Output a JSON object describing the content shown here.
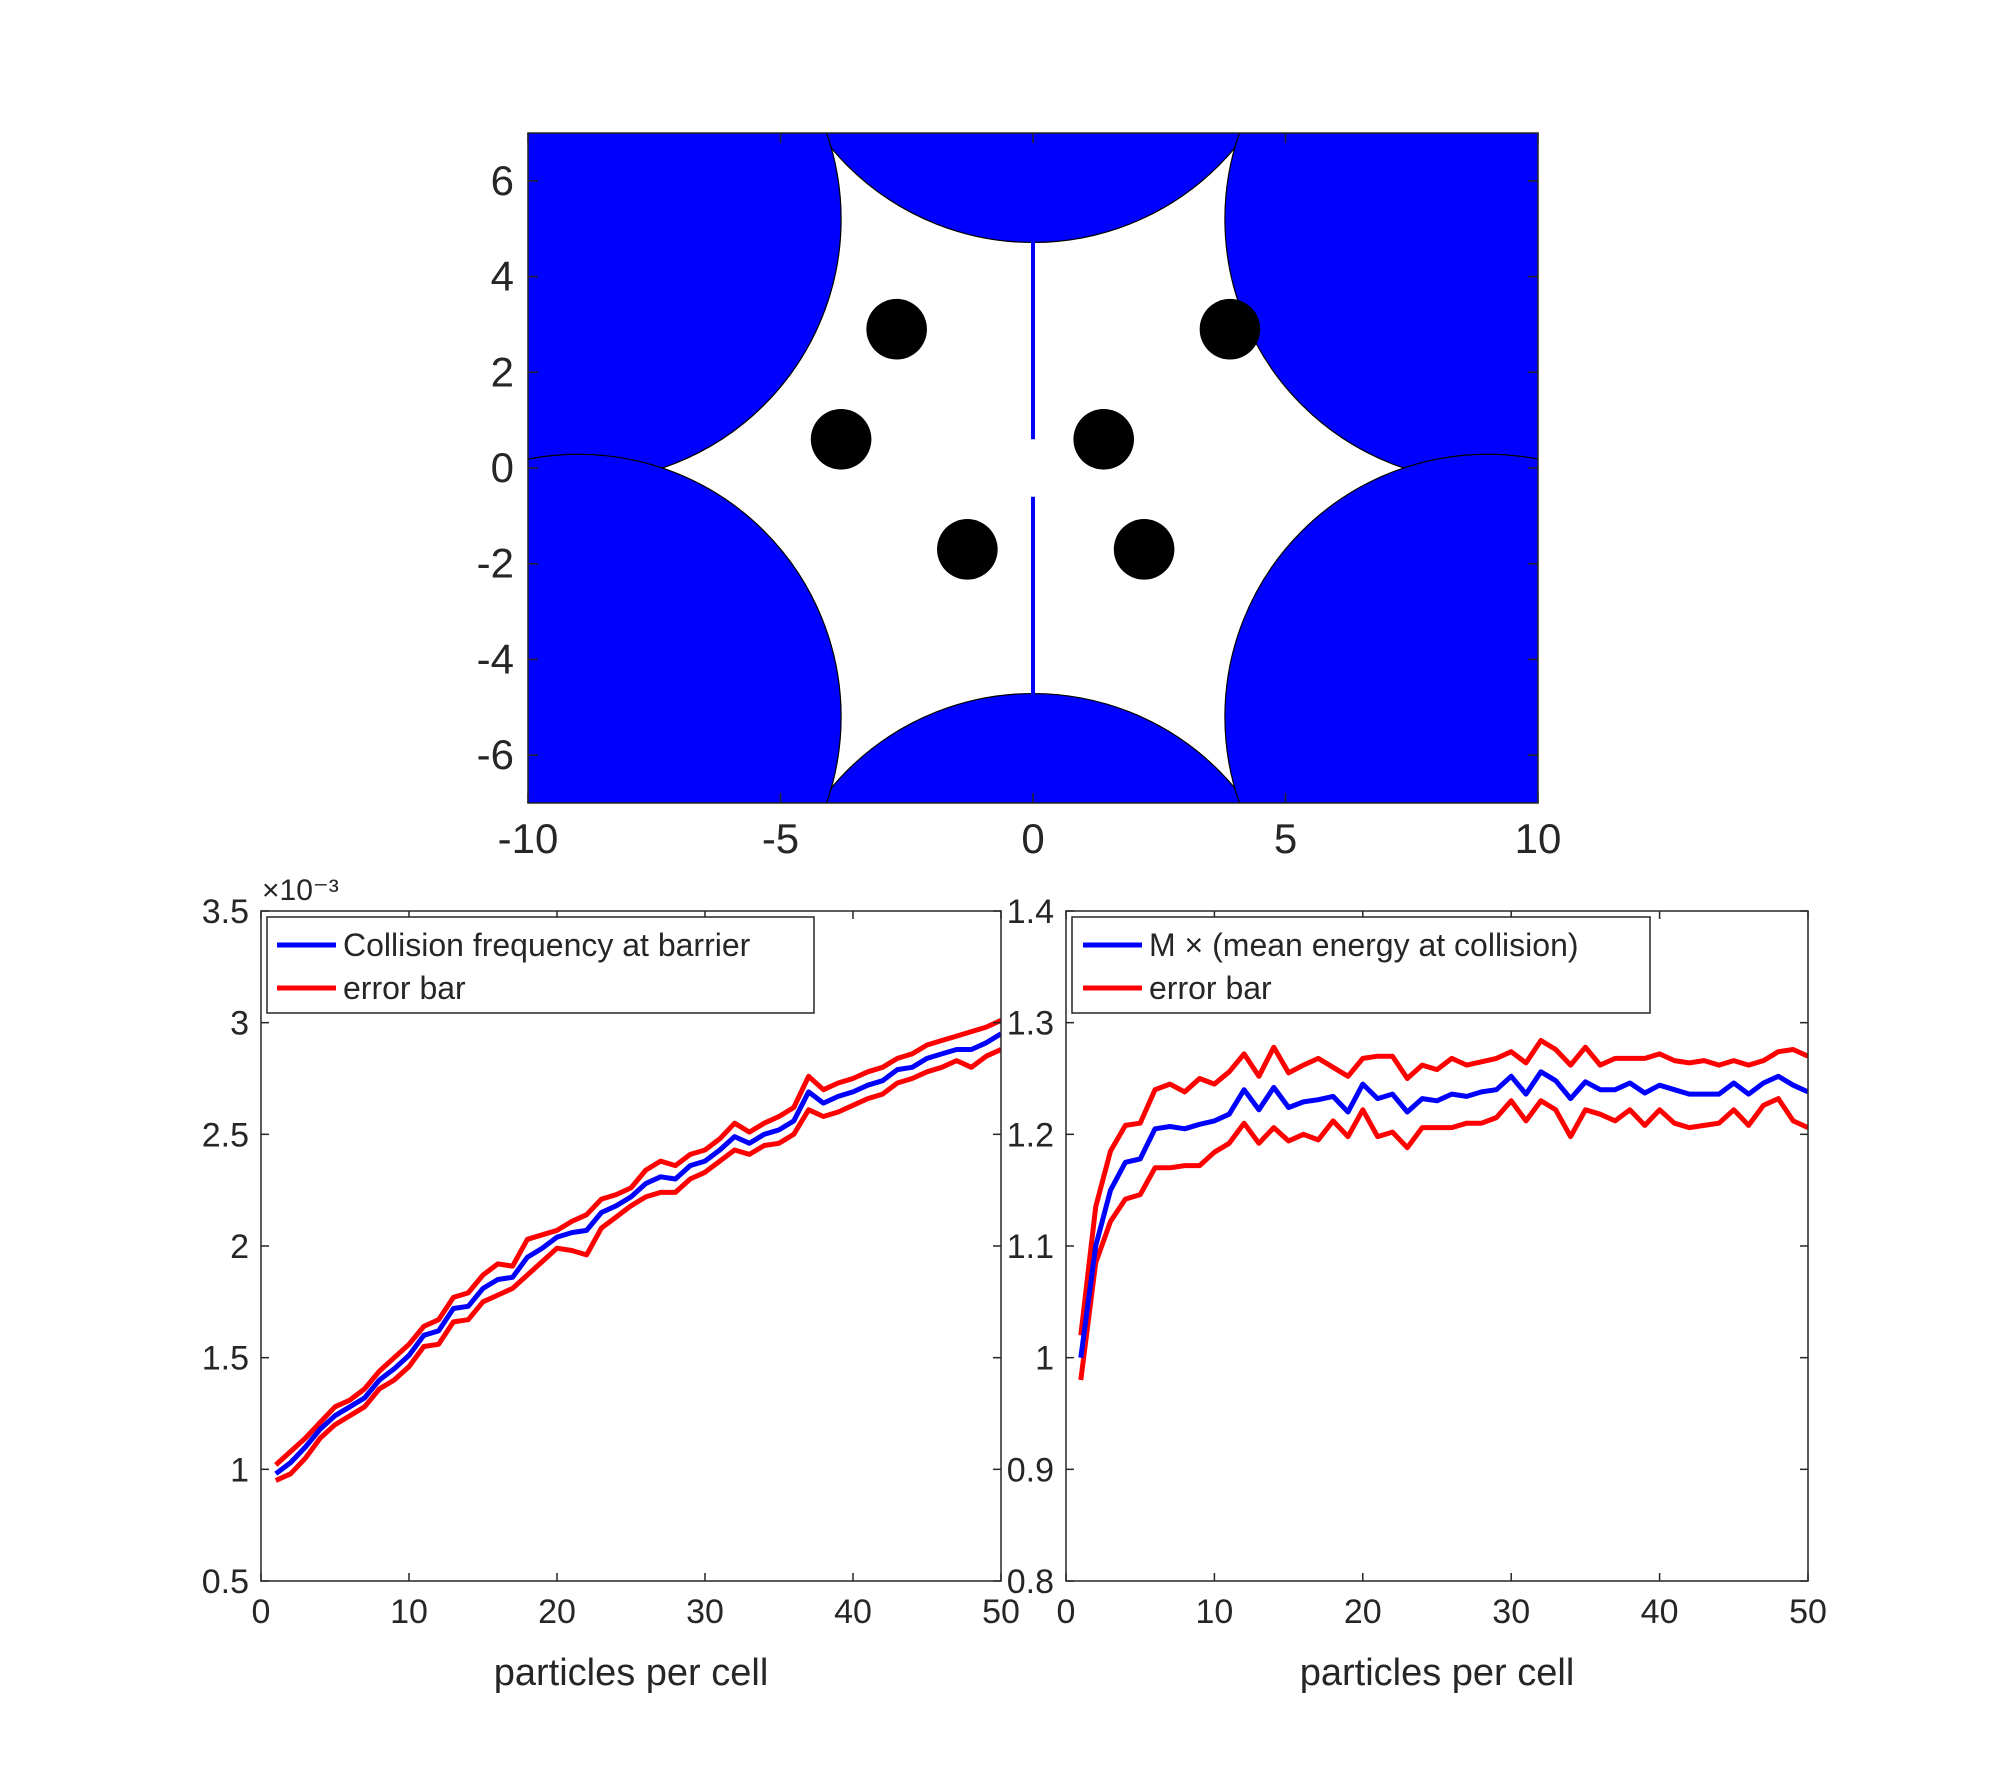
{
  "colors": {
    "blue": "#0000ff",
    "red": "#ff0000",
    "black": "#000000",
    "axis": "#262626",
    "background": "#ffffff"
  },
  "chart_data": [
    {
      "type": "geometry",
      "xlim": [
        -10,
        10
      ],
      "ylim": [
        -7,
        7
      ],
      "xticks": [
        -10,
        -5,
        0,
        5,
        10
      ],
      "yticks": [
        -6,
        -4,
        -2,
        0,
        2,
        4,
        6
      ],
      "grid": false,
      "scatterers": {
        "hexagon_center_distance": 10.39,
        "radius": 5.2,
        "centers": [
          [
            0,
            10.2
          ],
          [
            0,
            -10.2
          ],
          [
            9,
            5.2
          ],
          [
            9,
            -5.2
          ],
          [
            -9,
            5.2
          ],
          [
            -9,
            -5.2
          ]
        ]
      },
      "barrier": {
        "x": 0,
        "segments": [
          [
            0.6,
            5.0
          ],
          [
            -5.0,
            -0.6
          ]
        ]
      },
      "particles": {
        "radius": 0.6,
        "centers": [
          [
            -2.7,
            2.9
          ],
          [
            3.9,
            2.9
          ],
          [
            -3.8,
            0.6
          ],
          [
            1.4,
            0.6
          ],
          [
            -1.3,
            -1.7
          ],
          [
            2.2,
            -1.7
          ]
        ]
      }
    },
    {
      "type": "line",
      "xlabel": "particles per cell",
      "ylabel": "",
      "exponent_label": "×10⁻³",
      "xlim": [
        0,
        50
      ],
      "ylim": [
        0.5,
        3.5
      ],
      "xticks": [
        0,
        10,
        20,
        30,
        40,
        50
      ],
      "yticks": [
        0.5,
        1,
        1.5,
        2,
        2.5,
        3,
        3.5
      ],
      "legend_position": "top-left",
      "grid": false,
      "x": [
        1,
        2,
        3,
        4,
        5,
        6,
        7,
        8,
        9,
        10,
        11,
        12,
        13,
        14,
        15,
        16,
        17,
        18,
        19,
        20,
        21,
        22,
        23,
        24,
        25,
        26,
        27,
        28,
        29,
        30,
        31,
        32,
        33,
        34,
        35,
        36,
        37,
        38,
        39,
        40,
        41,
        42,
        43,
        44,
        45,
        46,
        47,
        48,
        49,
        50
      ],
      "series": [
        {
          "name": "Collision frequency at barrier",
          "color": "#0000ff",
          "values": [
            0.98,
            1.03,
            1.1,
            1.18,
            1.24,
            1.28,
            1.32,
            1.4,
            1.45,
            1.51,
            1.6,
            1.62,
            1.72,
            1.73,
            1.81,
            1.85,
            1.86,
            1.95,
            1.99,
            2.04,
            2.06,
            2.07,
            2.15,
            2.18,
            2.22,
            2.28,
            2.31,
            2.3,
            2.36,
            2.38,
            2.43,
            2.49,
            2.46,
            2.5,
            2.52,
            2.56,
            2.69,
            2.64,
            2.67,
            2.69,
            2.72,
            2.74,
            2.79,
            2.8,
            2.84,
            2.86,
            2.88,
            2.88,
            2.91,
            2.95
          ]
        },
        {
          "name": "error bar",
          "color": "#ff0000",
          "values": [
            1.02,
            1.08,
            1.14,
            1.21,
            1.28,
            1.31,
            1.36,
            1.44,
            1.5,
            1.56,
            1.64,
            1.67,
            1.77,
            1.79,
            1.87,
            1.92,
            1.91,
            2.03,
            2.05,
            2.07,
            2.11,
            2.14,
            2.21,
            2.23,
            2.26,
            2.34,
            2.38,
            2.36,
            2.41,
            2.43,
            2.48,
            2.55,
            2.51,
            2.55,
            2.58,
            2.62,
            2.76,
            2.7,
            2.73,
            2.75,
            2.78,
            2.8,
            2.84,
            2.86,
            2.9,
            2.92,
            2.94,
            2.96,
            2.98,
            3.01
          ]
        },
        {
          "name": "",
          "color": "#ff0000",
          "values": [
            0.95,
            0.98,
            1.05,
            1.14,
            1.2,
            1.24,
            1.28,
            1.36,
            1.4,
            1.46,
            1.55,
            1.56,
            1.66,
            1.67,
            1.75,
            1.78,
            1.81,
            1.87,
            1.93,
            1.99,
            1.98,
            1.96,
            2.08,
            2.13,
            2.18,
            2.22,
            2.24,
            2.24,
            2.3,
            2.33,
            2.38,
            2.43,
            2.41,
            2.45,
            2.46,
            2.5,
            2.61,
            2.58,
            2.6,
            2.63,
            2.66,
            2.68,
            2.73,
            2.75,
            2.78,
            2.8,
            2.83,
            2.8,
            2.85,
            2.88
          ]
        }
      ]
    },
    {
      "type": "line",
      "xlabel": "particles per cell",
      "ylabel": "",
      "xlim": [
        0,
        50
      ],
      "ylim": [
        0.8,
        1.4
      ],
      "xticks": [
        0,
        10,
        20,
        30,
        40,
        50
      ],
      "yticks": [
        0.8,
        0.9,
        1,
        1.1,
        1.2,
        1.3,
        1.4
      ],
      "legend_position": "top-left",
      "grid": false,
      "x": [
        1,
        2,
        3,
        4,
        5,
        6,
        7,
        8,
        9,
        10,
        11,
        12,
        13,
        14,
        15,
        16,
        17,
        18,
        19,
        20,
        21,
        22,
        23,
        24,
        25,
        26,
        27,
        28,
        29,
        30,
        31,
        32,
        33,
        34,
        35,
        36,
        37,
        38,
        39,
        40,
        41,
        42,
        43,
        44,
        45,
        46,
        47,
        48,
        49,
        50
      ],
      "series": [
        {
          "name": "M × (mean energy at collision)",
          "color": "#0000ff",
          "values": [
            1.0,
            1.1,
            1.15,
            1.175,
            1.178,
            1.205,
            1.207,
            1.205,
            1.209,
            1.212,
            1.218,
            1.24,
            1.222,
            1.242,
            1.224,
            1.229,
            1.231,
            1.234,
            1.22,
            1.245,
            1.232,
            1.236,
            1.22,
            1.232,
            1.23,
            1.236,
            1.234,
            1.238,
            1.24,
            1.252,
            1.236,
            1.256,
            1.248,
            1.232,
            1.247,
            1.24,
            1.24,
            1.246,
            1.237,
            1.244,
            1.24,
            1.236,
            1.236,
            1.236,
            1.246,
            1.236,
            1.246,
            1.252,
            1.244,
            1.238
          ]
        },
        {
          "name": "error bar",
          "color": "#ff0000",
          "values": [
            1.02,
            1.135,
            1.185,
            1.208,
            1.21,
            1.24,
            1.245,
            1.238,
            1.25,
            1.245,
            1.256,
            1.272,
            1.252,
            1.278,
            1.255,
            1.262,
            1.268,
            1.26,
            1.252,
            1.268,
            1.27,
            1.27,
            1.25,
            1.262,
            1.258,
            1.268,
            1.262,
            1.265,
            1.268,
            1.274,
            1.264,
            1.284,
            1.276,
            1.262,
            1.278,
            1.262,
            1.268,
            1.268,
            1.268,
            1.272,
            1.266,
            1.264,
            1.266,
            1.262,
            1.266,
            1.262,
            1.266,
            1.274,
            1.276,
            1.27
          ]
        },
        {
          "name": "",
          "color": "#ff0000",
          "values": [
            0.98,
            1.085,
            1.122,
            1.142,
            1.146,
            1.17,
            1.17,
            1.172,
            1.172,
            1.184,
            1.192,
            1.21,
            1.192,
            1.206,
            1.194,
            1.2,
            1.195,
            1.212,
            1.198,
            1.222,
            1.198,
            1.202,
            1.188,
            1.206,
            1.206,
            1.206,
            1.21,
            1.21,
            1.215,
            1.23,
            1.212,
            1.23,
            1.222,
            1.198,
            1.222,
            1.218,
            1.212,
            1.222,
            1.208,
            1.222,
            1.21,
            1.206,
            1.208,
            1.21,
            1.222,
            1.208,
            1.226,
            1.232,
            1.212,
            1.206
          ]
        }
      ]
    }
  ]
}
